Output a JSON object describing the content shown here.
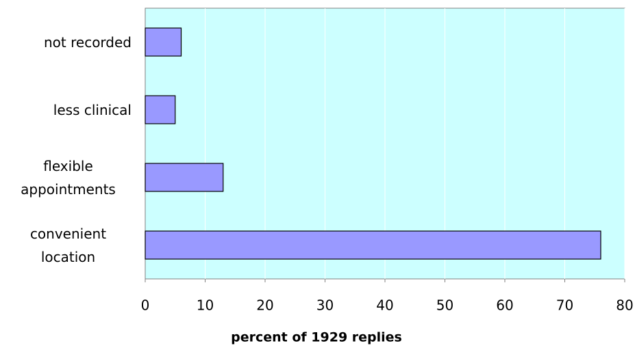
{
  "chart_data": {
    "type": "bar",
    "orientation": "horizontal",
    "x_label": "percent of 1929 replies",
    "categories": [
      "not recorded",
      "less clinical",
      "flexible appointments",
      "convenient location"
    ],
    "values": [
      6,
      5,
      13,
      76
    ],
    "color": "#9999ff",
    "background": "#ccffff",
    "xlim": [
      0,
      80
    ],
    "xticks": [
      0,
      10,
      20,
      30,
      40,
      50,
      60,
      70,
      80
    ],
    "grid": true
  }
}
